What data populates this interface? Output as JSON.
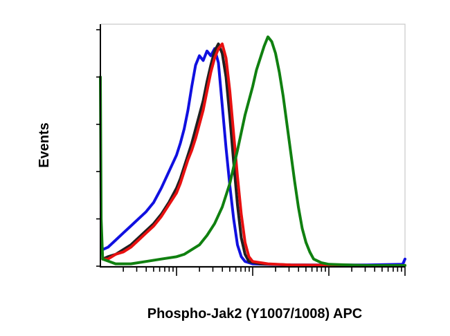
{
  "chart_data": {
    "type": "line",
    "title": "",
    "xlabel": "Phospho-Jak2 (Y1007/1008) APC",
    "ylabel": "Events",
    "x_scale": "log",
    "xlim": [
      0,
      4
    ],
    "ylim": [
      0,
      100
    ],
    "grid": false,
    "legend": "none",
    "series": [
      {
        "color": "#1010e0",
        "points": [
          [
            0.03,
            7
          ],
          [
            0.1,
            8
          ],
          [
            0.2,
            11
          ],
          [
            0.3,
            14
          ],
          [
            0.4,
            17
          ],
          [
            0.5,
            20
          ],
          [
            0.6,
            23
          ],
          [
            0.7,
            27
          ],
          [
            0.8,
            33
          ],
          [
            0.9,
            40
          ],
          [
            1.0,
            47
          ],
          [
            1.05,
            52
          ],
          [
            1.1,
            58
          ],
          [
            1.15,
            66
          ],
          [
            1.2,
            76
          ],
          [
            1.25,
            85
          ],
          [
            1.3,
            89
          ],
          [
            1.35,
            87
          ],
          [
            1.4,
            91
          ],
          [
            1.45,
            89
          ],
          [
            1.5,
            92
          ],
          [
            1.55,
            86
          ],
          [
            1.6,
            68
          ],
          [
            1.65,
            50
          ],
          [
            1.7,
            34
          ],
          [
            1.75,
            20
          ],
          [
            1.8,
            9
          ],
          [
            1.85,
            4
          ],
          [
            1.9,
            2
          ],
          [
            2.0,
            1
          ],
          [
            2.5,
            0.5
          ],
          [
            3.5,
            0.5
          ],
          [
            3.97,
            0.8
          ],
          [
            4.0,
            3
          ]
        ]
      },
      {
        "color": "#202020",
        "points": [
          [
            0.03,
            3
          ],
          [
            0.1,
            4
          ],
          [
            0.2,
            5
          ],
          [
            0.3,
            7
          ],
          [
            0.4,
            9
          ],
          [
            0.5,
            12
          ],
          [
            0.6,
            15
          ],
          [
            0.7,
            18
          ],
          [
            0.8,
            22
          ],
          [
            0.9,
            27
          ],
          [
            1.0,
            33
          ],
          [
            1.05,
            37
          ],
          [
            1.1,
            42
          ],
          [
            1.15,
            47
          ],
          [
            1.2,
            52
          ],
          [
            1.25,
            58
          ],
          [
            1.3,
            64
          ],
          [
            1.35,
            70
          ],
          [
            1.4,
            78
          ],
          [
            1.45,
            85
          ],
          [
            1.5,
            91
          ],
          [
            1.55,
            94
          ],
          [
            1.6,
            90
          ],
          [
            1.65,
            80
          ],
          [
            1.7,
            63
          ],
          [
            1.75,
            44
          ],
          [
            1.8,
            26
          ],
          [
            1.85,
            12
          ],
          [
            1.9,
            5
          ],
          [
            1.95,
            2
          ],
          [
            2.1,
            1
          ],
          [
            2.5,
            0.5
          ],
          [
            3.5,
            0.3
          ],
          [
            4.0,
            0.3
          ]
        ]
      },
      {
        "color": "#e81010",
        "points": [
          [
            0.03,
            3
          ],
          [
            0.1,
            3
          ],
          [
            0.2,
            5
          ],
          [
            0.3,
            6
          ],
          [
            0.4,
            8
          ],
          [
            0.5,
            11
          ],
          [
            0.6,
            14
          ],
          [
            0.7,
            17
          ],
          [
            0.8,
            21
          ],
          [
            0.9,
            26
          ],
          [
            1.0,
            31
          ],
          [
            1.05,
            35
          ],
          [
            1.1,
            40
          ],
          [
            1.15,
            45
          ],
          [
            1.2,
            49
          ],
          [
            1.25,
            54
          ],
          [
            1.3,
            60
          ],
          [
            1.35,
            66
          ],
          [
            1.4,
            74
          ],
          [
            1.45,
            82
          ],
          [
            1.5,
            88
          ],
          [
            1.55,
            92
          ],
          [
            1.6,
            94
          ],
          [
            1.65,
            88
          ],
          [
            1.7,
            74
          ],
          [
            1.75,
            56
          ],
          [
            1.8,
            38
          ],
          [
            1.85,
            22
          ],
          [
            1.9,
            10
          ],
          [
            1.95,
            4
          ],
          [
            2.0,
            2
          ],
          [
            2.2,
            1
          ],
          [
            2.5,
            0.5
          ],
          [
            3.5,
            0.3
          ],
          [
            4.0,
            0.3
          ]
        ]
      },
      {
        "color": "#108010",
        "points": [
          [
            0.0,
            80
          ],
          [
            0.01,
            20
          ],
          [
            0.03,
            3
          ],
          [
            0.2,
            1
          ],
          [
            0.4,
            1
          ],
          [
            0.6,
            2
          ],
          [
            0.8,
            3
          ],
          [
            1.0,
            4
          ],
          [
            1.1,
            5
          ],
          [
            1.2,
            7
          ],
          [
            1.3,
            9
          ],
          [
            1.4,
            13
          ],
          [
            1.5,
            18
          ],
          [
            1.6,
            25
          ],
          [
            1.7,
            35
          ],
          [
            1.8,
            49
          ],
          [
            1.9,
            64
          ],
          [
            2.0,
            76
          ],
          [
            2.05,
            83
          ],
          [
            2.1,
            88
          ],
          [
            2.15,
            93
          ],
          [
            2.2,
            97
          ],
          [
            2.25,
            95
          ],
          [
            2.3,
            90
          ],
          [
            2.35,
            82
          ],
          [
            2.4,
            72
          ],
          [
            2.45,
            60
          ],
          [
            2.5,
            48
          ],
          [
            2.55,
            36
          ],
          [
            2.6,
            25
          ],
          [
            2.65,
            16
          ],
          [
            2.7,
            10
          ],
          [
            2.75,
            6
          ],
          [
            2.8,
            3
          ],
          [
            2.9,
            1.5
          ],
          [
            3.0,
            0.8
          ],
          [
            3.5,
            0.3
          ],
          [
            4.0,
            0.3
          ]
        ]
      }
    ]
  }
}
